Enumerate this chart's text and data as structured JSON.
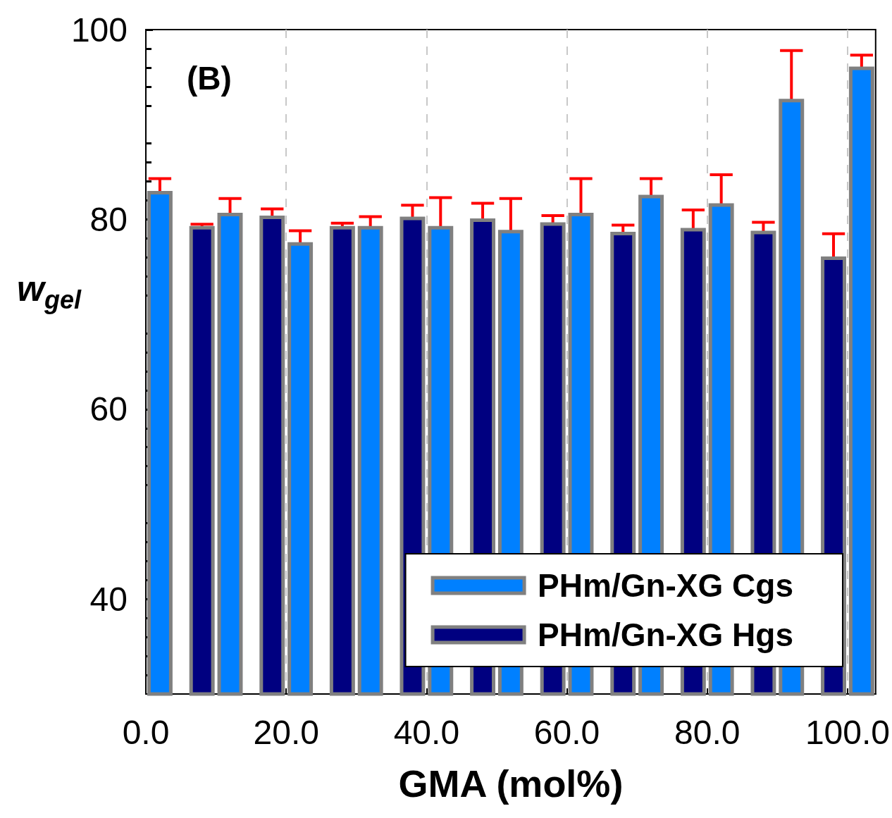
{
  "chart_data": {
    "type": "bar",
    "xlabel": "GMA (mol%)",
    "ylabel": "w$_{gel}$",
    "annotations": [
      "(B)"
    ],
    "xlim": [
      0,
      104
    ],
    "xticks": [
      {
        "value": 0,
        "label": "0.0"
      },
      {
        "value": 20,
        "label": "20.0"
      },
      {
        "value": 40,
        "label": "40.0"
      },
      {
        "value": 60,
        "label": "60.0"
      },
      {
        "value": 80,
        "label": "80.0"
      },
      {
        "value": 100,
        "label": "100.0"
      }
    ],
    "ylim": [
      30,
      100
    ],
    "yticks": [
      40,
      60,
      80,
      100
    ],
    "grid": "x",
    "legend": "bottom right",
    "series": [
      {
        "name": "PHm/Gn-XG Cgs",
        "color": "#0080ff",
        "x": [
          2,
          12,
          22,
          32,
          42,
          52,
          62,
          72,
          82,
          92,
          102
        ],
        "values": [
          83.0,
          80.7,
          77.6,
          79.3,
          79.3,
          78.9,
          80.7,
          82.6,
          81.7,
          92.7,
          96.1
        ],
        "errors": [
          1.3,
          1.5,
          1.2,
          1.0,
          3.0,
          3.3,
          3.6,
          1.7,
          3.0,
          5.1,
          1.2
        ]
      },
      {
        "name": "PHm/Gn-XG Hgs",
        "color": "#000080",
        "x": [
          8,
          18,
          28,
          38,
          48,
          58,
          68,
          78,
          88,
          98
        ],
        "values": [
          79.3,
          80.4,
          79.3,
          80.3,
          80.1,
          79.7,
          78.7,
          79.1,
          78.8,
          76.1
        ],
        "errors": [
          0.2,
          0.7,
          0.3,
          1.2,
          1.6,
          0.7,
          0.7,
          1.9,
          0.9,
          2.4
        ]
      }
    ]
  }
}
